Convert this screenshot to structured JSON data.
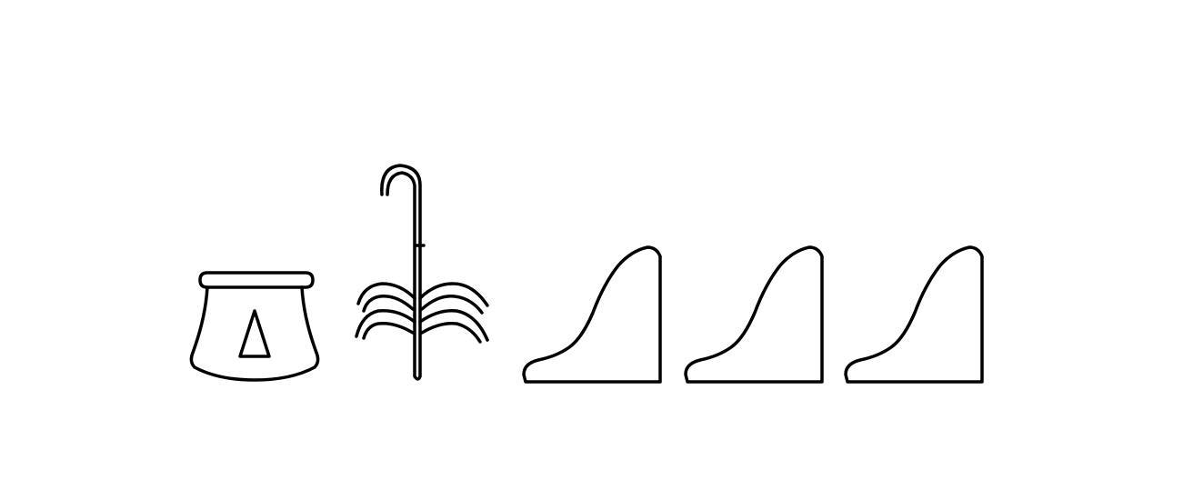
{
  "inscription": {
    "script": "hieroglyphic",
    "glyphs": [
      {
        "icon": "jar-with-triangle-icon"
      },
      {
        "icon": "crook-with-branches-icon"
      },
      {
        "icon": "hill-slope-icon"
      },
      {
        "icon": "hill-slope-icon"
      },
      {
        "icon": "hill-slope-icon"
      }
    ]
  },
  "colors": {
    "ink": "#000000",
    "background": "#ffffff"
  }
}
